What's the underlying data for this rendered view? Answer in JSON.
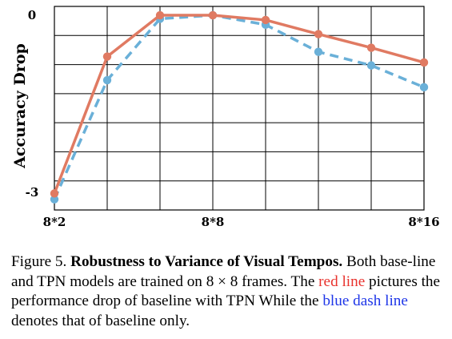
{
  "chart_data": {
    "type": "line",
    "ylabel": "Accuracy Drop",
    "xlabel": "",
    "title": "",
    "x_tick_labels": [
      {
        "at": 0,
        "label": "8*2"
      },
      {
        "at": 3,
        "label": "8*8"
      },
      {
        "at": 7,
        "label": "8*16"
      }
    ],
    "y_tick_labels": [
      {
        "at": 0,
        "label": "0"
      },
      {
        "at": -3,
        "label": "-3"
      }
    ],
    "x": [
      0,
      1,
      2,
      3,
      4,
      5,
      6,
      7
    ],
    "xlim": [
      0,
      7
    ],
    "ylim": [
      -3.3,
      0.15
    ],
    "grid": true,
    "series": [
      {
        "style": "solid",
        "color": "#e07a62",
        "values": [
          -3.02,
          -0.7,
          0.0,
          0.0,
          -0.08,
          -0.32,
          -0.55,
          -0.8
        ]
      },
      {
        "style": "dashed",
        "color": "#6ab0d8",
        "values": [
          -3.12,
          -1.1,
          -0.06,
          0.0,
          -0.16,
          -0.62,
          -0.85,
          -1.22
        ]
      }
    ]
  },
  "caption": {
    "figure_label": "Figure 5.",
    "bold_title": "Robustness to Variance of Visual Tempos.",
    "text_1": "Both base-line and TPN models are trained on 8 × 8 frames. The",
    "red_phrase": "red line",
    "text_2": "pictures the performance drop of baseline with TPN While the",
    "blue_phrase": "blue dash line",
    "text_3": "denotes that of baseline only."
  }
}
